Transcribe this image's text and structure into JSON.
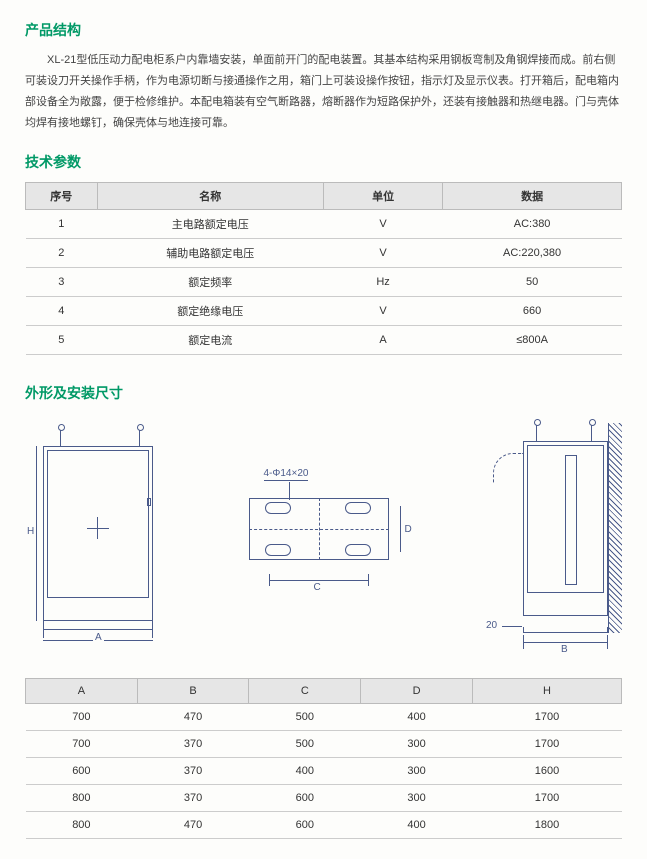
{
  "sections": {
    "structure_title": "产品结构",
    "params_title": "技术参数",
    "dims_title": "外形及安装尺寸"
  },
  "description": "XL-21型低压动力配电柜系户内靠墙安装，单面前开门的配电装置。其基本结构采用钢板弯制及角钢焊接而成。前右侧可装设刀开关操作手柄，作为电源切断与接通操作之用，箱门上可装设操作按钮，指示灯及显示仪表。打开箱后，配电箱内部设备全为敞露，便于检修维护。本配电箱装有空气断路器，熔断器作为短路保护外，还装有接触器和热继电器。门与壳体均焊有接地螺钉，确保壳体与地连接可靠。",
  "spec_table": {
    "headers": [
      "序号",
      "名称",
      "单位",
      "数据"
    ],
    "col_widths": [
      "12%",
      "38%",
      "20%",
      "30%"
    ],
    "rows": [
      [
        "1",
        "主电路额定电压",
        "V",
        "AC:380"
      ],
      [
        "2",
        "辅助电路额定电压",
        "V",
        "AC:220,380"
      ],
      [
        "3",
        "额定频率",
        "Hz",
        "50"
      ],
      [
        "4",
        "额定绝缘电压",
        "V",
        "660"
      ],
      [
        "5",
        "额定电流",
        "A",
        "≤800A"
      ]
    ]
  },
  "diagram_labels": {
    "H": "H",
    "A": "A",
    "B": "B",
    "C": "C",
    "D": "D",
    "hole": "4-Φ14×20",
    "twenty": "20"
  },
  "dim_table": {
    "headers": [
      "A",
      "B",
      "C",
      "D",
      "H"
    ],
    "rows": [
      [
        "700",
        "470",
        "500",
        "400",
        "1700"
      ],
      [
        "700",
        "370",
        "500",
        "300",
        "1700"
      ],
      [
        "600",
        "370",
        "400",
        "300",
        "1600"
      ],
      [
        "800",
        "370",
        "600",
        "300",
        "1700"
      ],
      [
        "800",
        "470",
        "600",
        "400",
        "1800"
      ]
    ]
  },
  "colors": {
    "accent": "#009966",
    "line": "#4a5a8a",
    "header_bg": "#e6e6e6",
    "border": "#bbbbbb"
  }
}
